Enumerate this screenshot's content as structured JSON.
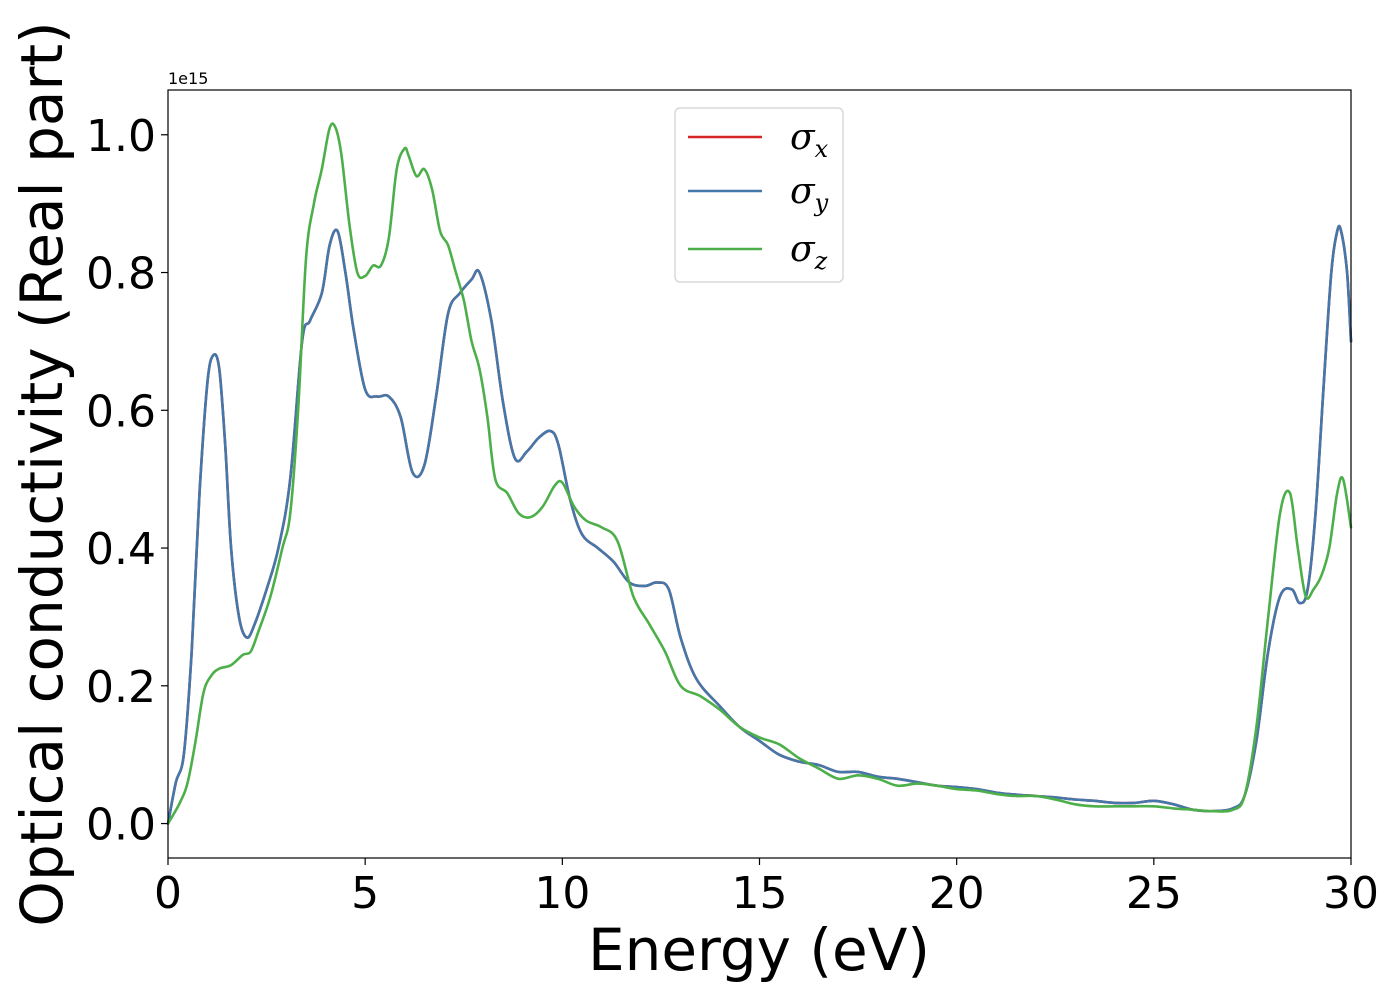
{
  "chart_data": {
    "type": "line",
    "title": "",
    "xlabel": "Energy (eV)",
    "ylabel": "Optical conductivity (Real part)",
    "y_offset_label": "1e15",
    "xlim": [
      0,
      30
    ],
    "ylim": [
      -0.05,
      1.065
    ],
    "xticks": [
      0,
      5,
      10,
      15,
      20,
      25,
      30
    ],
    "xtick_labels": [
      "0",
      "5",
      "10",
      "15",
      "20",
      "25",
      "30"
    ],
    "yticks": [
      0.0,
      0.2,
      0.4,
      0.6,
      0.8,
      1.0
    ],
    "ytick_labels": [
      "0.0",
      "0.2",
      "0.4",
      "0.6",
      "0.8",
      "1.0"
    ],
    "grid": false,
    "legend_position": "upper-center",
    "series": [
      {
        "name": "σx",
        "symbol": "σ",
        "subscript": "x",
        "color": "#d62728",
        "x": [
          0,
          0.2,
          0.4,
          0.6,
          0.8,
          1.0,
          1.15,
          1.3,
          1.45,
          1.6,
          1.8,
          2.0,
          2.2,
          2.5,
          2.8,
          3.1,
          3.4,
          3.6,
          3.9,
          4.1,
          4.3,
          4.5,
          4.7,
          5.0,
          5.3,
          5.6,
          5.9,
          6.2,
          6.5,
          6.8,
          7.1,
          7.4,
          7.7,
          7.9,
          8.2,
          8.5,
          8.8,
          9.1,
          9.4,
          9.7,
          9.9,
          10.2,
          10.5,
          10.9,
          11.3,
          11.7,
          12.1,
          12.4,
          12.7,
          13.0,
          13.4,
          14.0,
          14.5,
          15.0,
          15.5,
          16.0,
          16.5,
          17.0,
          17.5,
          18.0,
          18.5,
          19.0,
          19.5,
          20.0,
          20.5,
          21.0,
          21.5,
          22.0,
          22.5,
          23.0,
          23.5,
          24.0,
          24.5,
          25.0,
          25.5,
          26.0,
          26.5,
          27.0,
          27.3,
          27.6,
          27.9,
          28.2,
          28.5,
          28.7,
          28.9,
          29.1,
          29.3,
          29.5,
          29.65,
          29.75,
          29.9,
          30.0
        ],
        "y": [
          0.0,
          0.06,
          0.1,
          0.25,
          0.48,
          0.64,
          0.68,
          0.66,
          0.55,
          0.4,
          0.3,
          0.27,
          0.29,
          0.34,
          0.4,
          0.5,
          0.7,
          0.73,
          0.77,
          0.84,
          0.86,
          0.8,
          0.72,
          0.63,
          0.62,
          0.62,
          0.59,
          0.51,
          0.52,
          0.62,
          0.74,
          0.77,
          0.79,
          0.8,
          0.73,
          0.61,
          0.53,
          0.54,
          0.56,
          0.57,
          0.55,
          0.47,
          0.42,
          0.4,
          0.38,
          0.35,
          0.345,
          0.35,
          0.34,
          0.27,
          0.21,
          0.17,
          0.14,
          0.12,
          0.1,
          0.09,
          0.085,
          0.075,
          0.075,
          0.068,
          0.065,
          0.06,
          0.055,
          0.053,
          0.05,
          0.045,
          0.042,
          0.04,
          0.038,
          0.035,
          0.033,
          0.03,
          0.03,
          0.033,
          0.028,
          0.02,
          0.018,
          0.022,
          0.04,
          0.12,
          0.25,
          0.33,
          0.34,
          0.32,
          0.34,
          0.45,
          0.63,
          0.8,
          0.86,
          0.86,
          0.8,
          0.7
        ]
      },
      {
        "name": "σy",
        "symbol": "σ",
        "subscript": "y",
        "color": "#4477aa",
        "x": [
          0,
          0.2,
          0.4,
          0.6,
          0.8,
          1.0,
          1.15,
          1.3,
          1.45,
          1.6,
          1.8,
          2.0,
          2.2,
          2.5,
          2.8,
          3.1,
          3.4,
          3.6,
          3.9,
          4.1,
          4.3,
          4.5,
          4.7,
          5.0,
          5.3,
          5.6,
          5.9,
          6.2,
          6.5,
          6.8,
          7.1,
          7.4,
          7.7,
          7.9,
          8.2,
          8.5,
          8.8,
          9.1,
          9.4,
          9.7,
          9.9,
          10.2,
          10.5,
          10.9,
          11.3,
          11.7,
          12.1,
          12.4,
          12.7,
          13.0,
          13.4,
          14.0,
          14.5,
          15.0,
          15.5,
          16.0,
          16.5,
          17.0,
          17.5,
          18.0,
          18.5,
          19.0,
          19.5,
          20.0,
          20.5,
          21.0,
          21.5,
          22.0,
          22.5,
          23.0,
          23.5,
          24.0,
          24.5,
          25.0,
          25.5,
          26.0,
          26.5,
          27.0,
          27.3,
          27.6,
          27.9,
          28.2,
          28.5,
          28.7,
          28.9,
          29.1,
          29.3,
          29.5,
          29.65,
          29.75,
          29.9,
          30.0
        ],
        "y": [
          0.0,
          0.06,
          0.1,
          0.25,
          0.48,
          0.64,
          0.68,
          0.66,
          0.55,
          0.4,
          0.3,
          0.27,
          0.29,
          0.34,
          0.4,
          0.5,
          0.7,
          0.73,
          0.77,
          0.84,
          0.86,
          0.8,
          0.72,
          0.63,
          0.62,
          0.62,
          0.59,
          0.51,
          0.52,
          0.62,
          0.74,
          0.77,
          0.79,
          0.8,
          0.73,
          0.61,
          0.53,
          0.54,
          0.56,
          0.57,
          0.55,
          0.47,
          0.42,
          0.4,
          0.38,
          0.35,
          0.345,
          0.35,
          0.34,
          0.27,
          0.21,
          0.17,
          0.14,
          0.12,
          0.1,
          0.09,
          0.085,
          0.075,
          0.075,
          0.068,
          0.065,
          0.06,
          0.055,
          0.053,
          0.05,
          0.045,
          0.042,
          0.04,
          0.038,
          0.035,
          0.033,
          0.03,
          0.03,
          0.033,
          0.028,
          0.02,
          0.018,
          0.022,
          0.04,
          0.12,
          0.25,
          0.33,
          0.34,
          0.32,
          0.34,
          0.45,
          0.63,
          0.8,
          0.86,
          0.86,
          0.8,
          0.7
        ]
      },
      {
        "name": "σz",
        "symbol": "σ",
        "subscript": "z",
        "color": "#4daf4a",
        "x": [
          0,
          0.3,
          0.5,
          0.7,
          0.9,
          1.1,
          1.3,
          1.6,
          1.9,
          2.1,
          2.3,
          2.6,
          2.9,
          3.1,
          3.3,
          3.5,
          3.7,
          3.9,
          4.1,
          4.25,
          4.4,
          4.6,
          4.8,
          5.0,
          5.2,
          5.4,
          5.6,
          5.8,
          6.0,
          6.1,
          6.3,
          6.5,
          6.7,
          6.9,
          7.1,
          7.3,
          7.5,
          7.7,
          7.9,
          8.1,
          8.3,
          8.6,
          8.9,
          9.2,
          9.5,
          9.8,
          10.0,
          10.3,
          10.6,
          11.0,
          11.4,
          11.8,
          12.2,
          12.6,
          13.0,
          13.5,
          14.0,
          14.5,
          15.0,
          15.5,
          16.0,
          16.5,
          17.0,
          17.5,
          18.0,
          18.5,
          19.0,
          19.5,
          20.0,
          20.5,
          21.0,
          21.5,
          22.0,
          22.5,
          23.0,
          23.5,
          24.0,
          24.5,
          25.0,
          25.5,
          26.0,
          26.5,
          27.0,
          27.3,
          27.6,
          27.9,
          28.2,
          28.45,
          28.65,
          28.85,
          29.05,
          29.25,
          29.45,
          29.65,
          29.8,
          30.0
        ],
        "y": [
          0.0,
          0.03,
          0.06,
          0.12,
          0.19,
          0.215,
          0.225,
          0.23,
          0.245,
          0.25,
          0.28,
          0.33,
          0.4,
          0.45,
          0.6,
          0.82,
          0.9,
          0.95,
          1.01,
          1.01,
          0.97,
          0.87,
          0.8,
          0.795,
          0.81,
          0.81,
          0.85,
          0.95,
          0.98,
          0.97,
          0.94,
          0.95,
          0.92,
          0.86,
          0.84,
          0.8,
          0.76,
          0.7,
          0.66,
          0.59,
          0.5,
          0.48,
          0.45,
          0.445,
          0.46,
          0.49,
          0.495,
          0.46,
          0.44,
          0.43,
          0.41,
          0.33,
          0.29,
          0.25,
          0.2,
          0.185,
          0.165,
          0.14,
          0.125,
          0.115,
          0.095,
          0.08,
          0.065,
          0.07,
          0.065,
          0.055,
          0.058,
          0.055,
          0.05,
          0.048,
          0.043,
          0.04,
          0.04,
          0.035,
          0.028,
          0.025,
          0.025,
          0.025,
          0.025,
          0.022,
          0.02,
          0.018,
          0.02,
          0.04,
          0.14,
          0.3,
          0.45,
          0.48,
          0.4,
          0.33,
          0.34,
          0.36,
          0.4,
          0.48,
          0.5,
          0.43
        ]
      }
    ]
  }
}
